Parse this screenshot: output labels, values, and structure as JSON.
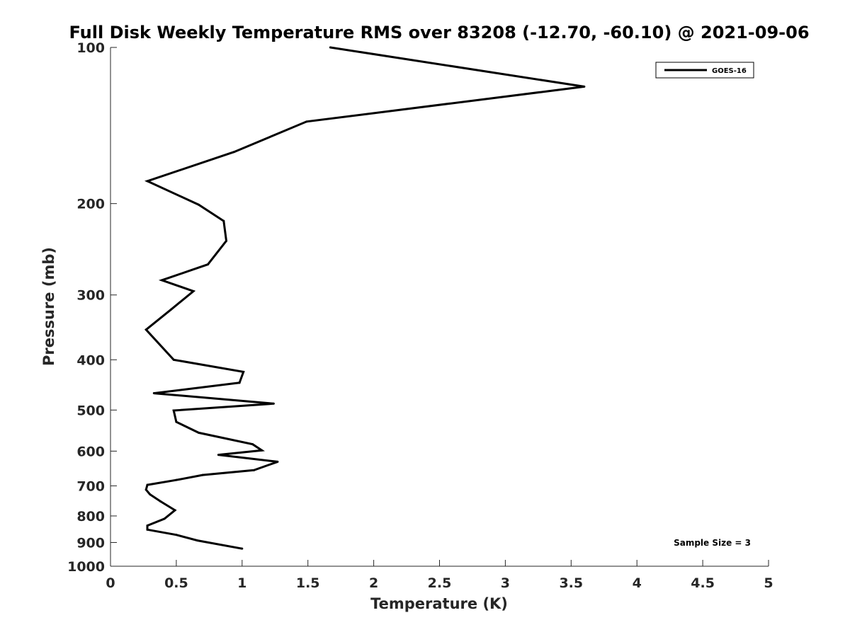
{
  "chart_data": {
    "type": "line",
    "title": "Full Disk Weekly Temperature RMS over 83208 (-12.70, -60.10) @ 2021-09-06",
    "xlabel": "Temperature (K)",
    "ylabel": "Pressure (mb)",
    "xlim": [
      0,
      5
    ],
    "ylim": [
      100,
      1000
    ],
    "y_scale": "log",
    "y_reversed": true,
    "x_ticks": [
      0,
      0.5,
      1,
      1.5,
      2,
      2.5,
      3,
      3.5,
      4,
      4.5,
      5
    ],
    "x_tick_labels": [
      "0",
      "0.5",
      "1",
      "1.5",
      "2",
      "2.5",
      "3",
      "3.5",
      "4",
      "4.5",
      "5"
    ],
    "y_ticks": [
      100,
      200,
      300,
      400,
      500,
      600,
      700,
      800,
      900,
      1000
    ],
    "y_tick_labels": [
      "100",
      "200",
      "300",
      "400",
      "500",
      "600",
      "700",
      "800",
      "900",
      "1000"
    ],
    "grid": false,
    "legend_position": "top-right",
    "annotation": "Sample Size = 3",
    "series": [
      {
        "name": "GOES-16",
        "color": "#000000",
        "points": [
          [
            1.67,
            100
          ],
          [
            3.6,
            119
          ],
          [
            1.49,
            139
          ],
          [
            0.94,
            159
          ],
          [
            0.28,
            181
          ],
          [
            0.67,
            201
          ],
          [
            0.86,
            216
          ],
          [
            0.88,
            236
          ],
          [
            0.74,
            262
          ],
          [
            0.39,
            281
          ],
          [
            0.63,
            295
          ],
          [
            0.46,
            320
          ],
          [
            0.27,
            350
          ],
          [
            0.48,
            400
          ],
          [
            1.01,
            422
          ],
          [
            0.98,
            443
          ],
          [
            0.33,
            464
          ],
          [
            1.24,
            486
          ],
          [
            0.48,
            501
          ],
          [
            0.5,
            527
          ],
          [
            0.67,
            553
          ],
          [
            1.08,
            582
          ],
          [
            1.15,
            598
          ],
          [
            0.82,
            610
          ],
          [
            1.27,
            629
          ],
          [
            1.09,
            653
          ],
          [
            0.7,
            667
          ],
          [
            0.5,
            682
          ],
          [
            0.28,
            697
          ],
          [
            0.27,
            712
          ],
          [
            0.3,
            727
          ],
          [
            0.38,
            750
          ],
          [
            0.49,
            780
          ],
          [
            0.41,
            810
          ],
          [
            0.28,
            835
          ],
          [
            0.28,
            850
          ],
          [
            0.5,
            870
          ],
          [
            0.66,
            892
          ],
          [
            1.0,
            925
          ]
        ]
      }
    ]
  }
}
